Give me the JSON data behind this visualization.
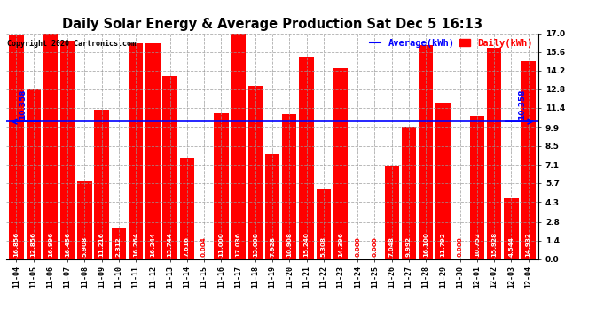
{
  "title": "Daily Solar Energy & Average Production Sat Dec 5 16:13",
  "copyright": "Copyright 2020 Cartronics.com",
  "average_label": "Average(kWh)",
  "daily_label": "Daily(kWh)",
  "average_value": 10.358,
  "categories": [
    "11-04",
    "11-05",
    "11-06",
    "11-07",
    "11-08",
    "11-09",
    "11-10",
    "11-11",
    "11-12",
    "11-13",
    "11-14",
    "11-15",
    "11-16",
    "11-17",
    "11-18",
    "11-19",
    "11-20",
    "11-21",
    "11-22",
    "11-23",
    "11-24",
    "11-25",
    "11-26",
    "11-27",
    "11-28",
    "11-29",
    "11-30",
    "12-01",
    "12-02",
    "12-03",
    "12-04"
  ],
  "values": [
    16.856,
    12.856,
    16.996,
    16.456,
    5.908,
    11.216,
    2.312,
    16.264,
    16.244,
    13.744,
    7.616,
    0.004,
    11.0,
    17.036,
    13.008,
    7.928,
    10.908,
    15.24,
    5.308,
    14.396,
    0.0,
    0.0,
    7.048,
    9.992,
    16.1,
    11.792,
    0.0,
    10.752,
    15.928,
    4.544,
    14.932
  ],
  "bar_color": "#ff0000",
  "average_line_color": "#0000ff",
  "average_text_color": "#0000ff",
  "daily_text_color": "#ff0000",
  "title_color": "#000000",
  "copyright_color": "#000000",
  "background_color": "#ffffff",
  "grid_color": "#999999",
  "yticks": [
    0.0,
    1.4,
    2.8,
    4.3,
    5.7,
    7.1,
    8.5,
    9.9,
    11.4,
    12.8,
    14.2,
    15.6,
    17.0
  ],
  "ylim": [
    0.0,
    17.0
  ],
  "value_fontsize": 5.2,
  "xlabel_fontsize": 6.0,
  "ylabel_fontsize": 6.5,
  "title_fontsize": 10.5,
  "copyright_fontsize": 6.0,
  "legend_fontsize": 7.5,
  "arrow_annotation": "10.358"
}
